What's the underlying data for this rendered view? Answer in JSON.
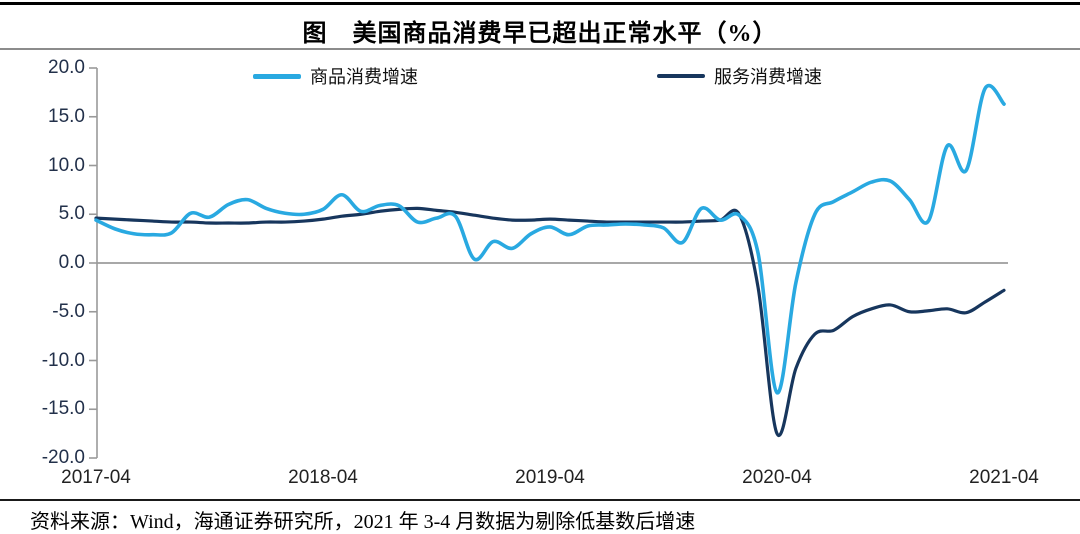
{
  "header": {
    "title": "图　美国商品消费早已超出正常水平（%）"
  },
  "footer": {
    "source": "资料来源：Wind，海通证券研究所，2021 年 3-4 月数据为剔除低基数后增速"
  },
  "legend": [
    {
      "label": "商品消费增速",
      "color": "#29A9E1"
    },
    {
      "label": "服务消费增速",
      "color": "#17365D"
    }
  ],
  "colors": {
    "goods_line": "#29A9E1",
    "services_line": "#17365D",
    "axis": "#999999",
    "zero_line": "#8c8c8c",
    "y_tick_text": "#22304a",
    "x_tick_text": "#222222"
  },
  "chart_data": {
    "type": "line",
    "title": "图　美国商品消费早已超出正常水平（%）",
    "xlabel": "",
    "ylabel": "",
    "ylim": [
      -20,
      20
    ],
    "ytick_step": 5,
    "yticks": [
      20,
      15,
      10,
      5,
      0,
      -5,
      -10,
      -15,
      -20
    ],
    "ytick_labels": [
      "20.0",
      "15.0",
      "10.0",
      "5.0",
      "0.0",
      "-5.0",
      "-10.0",
      "-15.0",
      "-20.0"
    ],
    "xtick_labels": [
      "2017-04",
      "2018-04",
      "2019-04",
      "2020-04",
      "2021-04"
    ],
    "xtick_indices": [
      0,
      12,
      24,
      36,
      48
    ],
    "grid": "zero-line-only",
    "legend_position": "top-inside",
    "x": [
      "2017-04",
      "2017-05",
      "2017-06",
      "2017-07",
      "2017-08",
      "2017-09",
      "2017-10",
      "2017-11",
      "2017-12",
      "2018-01",
      "2018-02",
      "2018-03",
      "2018-04",
      "2018-05",
      "2018-06",
      "2018-07",
      "2018-08",
      "2018-09",
      "2018-10",
      "2018-11",
      "2018-12",
      "2019-01",
      "2019-02",
      "2019-03",
      "2019-04",
      "2019-05",
      "2019-06",
      "2019-07",
      "2019-08",
      "2019-09",
      "2019-10",
      "2019-11",
      "2019-12",
      "2020-01",
      "2020-02",
      "2020-03",
      "2020-04",
      "2020-05",
      "2020-06",
      "2020-07",
      "2020-08",
      "2020-09",
      "2020-10",
      "2020-11",
      "2020-12",
      "2021-01",
      "2021-02",
      "2021-03",
      "2021-04"
    ],
    "series": [
      {
        "name": "商品消费增速",
        "color": "#29A9E1",
        "values": [
          4.4,
          3.5,
          3.0,
          2.9,
          3.1,
          5.1,
          4.7,
          6.0,
          6.5,
          5.6,
          5.1,
          5.0,
          5.5,
          7.0,
          5.3,
          5.9,
          5.9,
          4.2,
          4.6,
          4.8,
          0.4,
          2.2,
          1.5,
          3.0,
          3.7,
          2.9,
          3.8,
          3.9,
          4.0,
          3.9,
          3.6,
          2.1,
          5.6,
          4.4,
          4.9,
          1.0,
          -13.3,
          -2.0,
          5.0,
          6.3,
          7.3,
          8.3,
          8.4,
          6.5,
          4.3,
          12.0,
          9.5,
          17.9,
          16.3
        ]
      },
      {
        "name": "服务消费增速",
        "color": "#17365D",
        "values": [
          4.6,
          4.5,
          4.4,
          4.3,
          4.2,
          4.2,
          4.1,
          4.1,
          4.1,
          4.2,
          4.2,
          4.3,
          4.5,
          4.8,
          5.0,
          5.3,
          5.5,
          5.6,
          5.4,
          5.2,
          4.9,
          4.6,
          4.4,
          4.4,
          4.5,
          4.4,
          4.3,
          4.2,
          4.2,
          4.2,
          4.2,
          4.2,
          4.3,
          4.4,
          5.0,
          -2.5,
          -17.5,
          -10.8,
          -7.3,
          -6.9,
          -5.5,
          -4.7,
          -4.3,
          -5.0,
          -4.9,
          -4.7,
          -5.1,
          -4.0,
          -2.8
        ]
      }
    ]
  }
}
